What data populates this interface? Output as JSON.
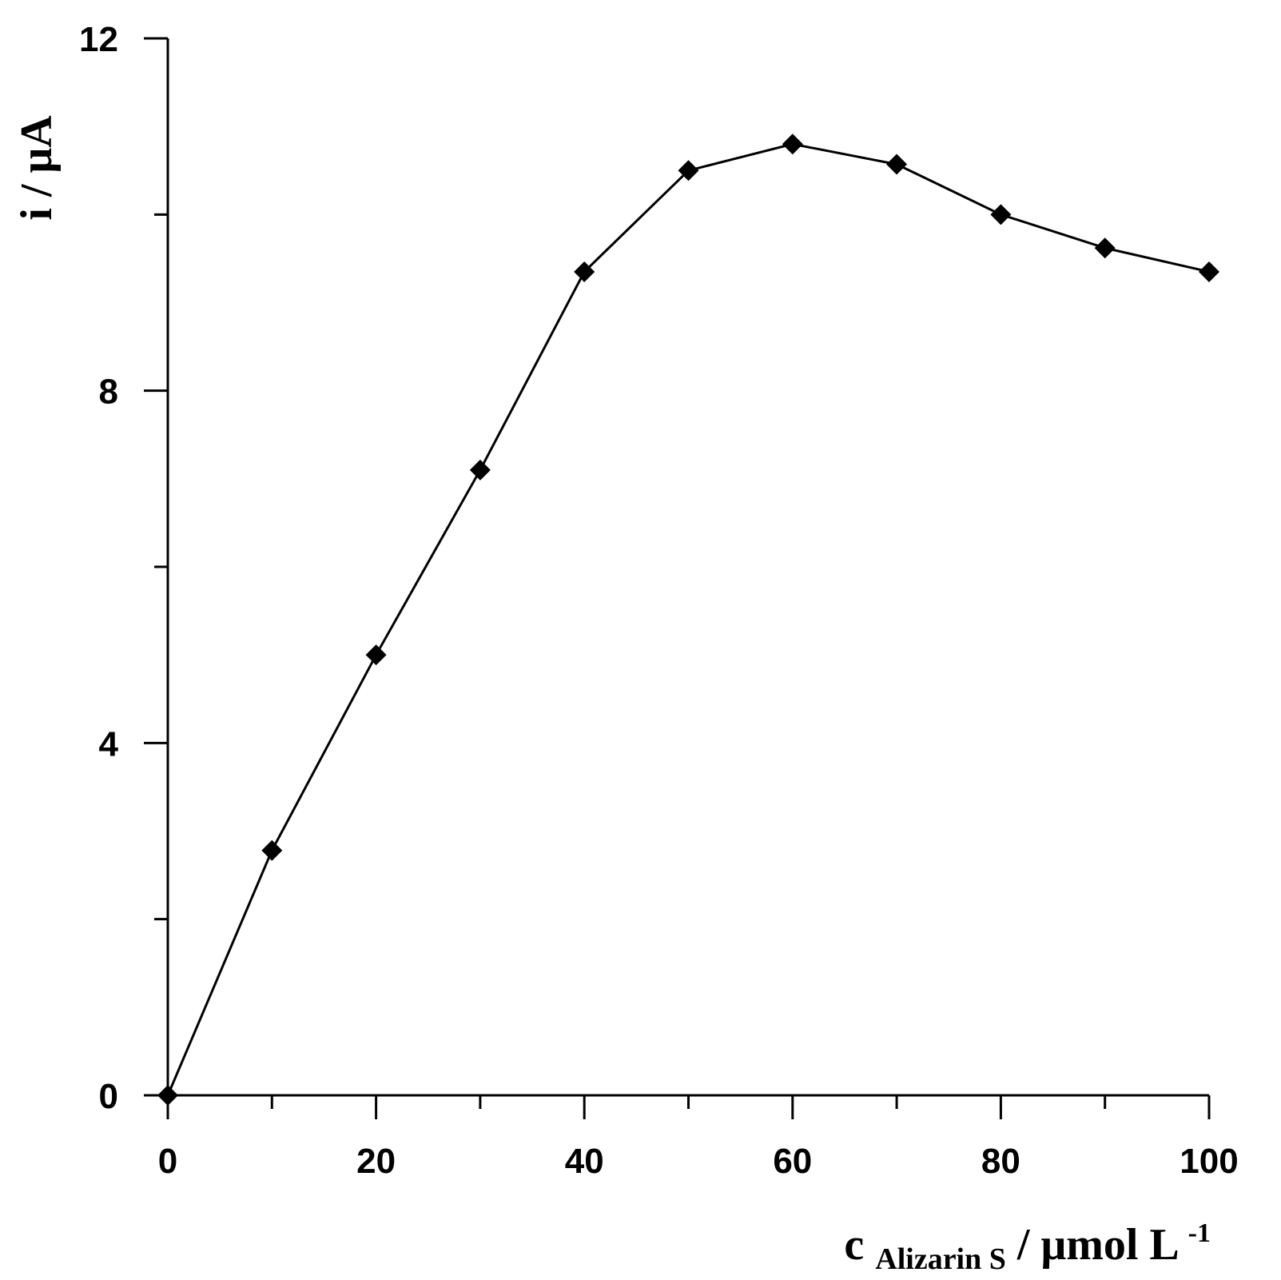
{
  "chart_data": {
    "type": "line",
    "title": "",
    "xlabel": {
      "main": "c",
      "subscript": "Alizarin S",
      "unit": " / μmol L",
      "superscript": "-1"
    },
    "ylabel": "i / μA",
    "xlim": [
      0,
      100
    ],
    "ylim": [
      0,
      12
    ],
    "x_ticks_major": [
      0,
      20,
      40,
      60,
      80,
      100
    ],
    "x_ticks_major_labels": [
      "0",
      "20",
      "40",
      "60",
      "80",
      "100"
    ],
    "x_ticks_minor": [
      10,
      30,
      50,
      70,
      90
    ],
    "y_ticks_major": [
      0,
      4,
      8,
      12
    ],
    "y_ticks_major_labels": [
      "0",
      "4",
      "8",
      "12"
    ],
    "y_ticks_minor": [
      2,
      6,
      10
    ],
    "grid": false,
    "marker": "diamond",
    "color": "#000000",
    "series": [
      {
        "x": [
          0,
          10,
          20,
          30,
          40,
          50,
          60,
          70,
          80,
          90,
          100
        ],
        "values": [
          0,
          2.78,
          5.0,
          7.1,
          9.35,
          10.5,
          10.8,
          10.57,
          10.0,
          9.62,
          9.35
        ]
      }
    ]
  }
}
